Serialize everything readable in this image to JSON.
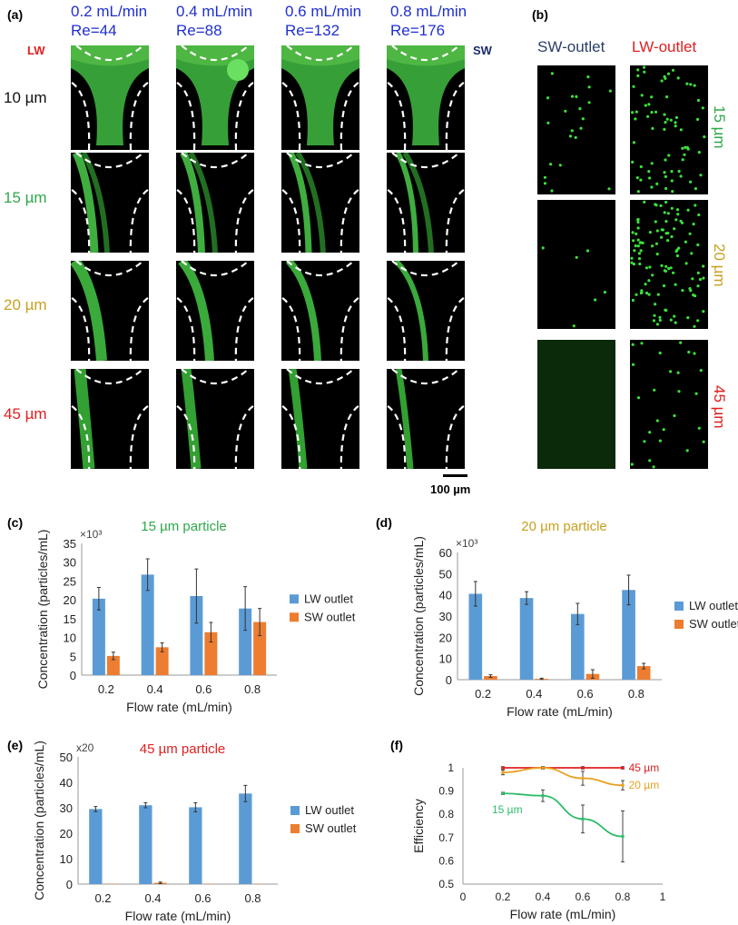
{
  "panel_a": {
    "label": "(a)",
    "columns": [
      {
        "flow": "0.2 mL/min",
        "re": "Re=44"
      },
      {
        "flow": "0.4 mL/min",
        "re": "Re=88"
      },
      {
        "flow": "0.6 mL/min",
        "re": "Re=132"
      },
      {
        "flow": "0.8 mL/min",
        "re": "Re=176"
      }
    ],
    "lw_label": "LW",
    "sw_label": "SW",
    "rows": [
      {
        "label": "10 µm",
        "color": "#111111"
      },
      {
        "label": "15 µm",
        "color": "#2ea84a"
      },
      {
        "label": "20 µm",
        "color": "#c8a020"
      },
      {
        "label": "45 µm",
        "color": "#e02020"
      }
    ],
    "scale_bar": "100 µm"
  },
  "panel_b": {
    "label": "(b)",
    "sw_outlet": "SW-outlet",
    "lw_outlet": "LW-outlet",
    "sw_color": "#2a3f6a",
    "lw_color": "#e02020",
    "rows": [
      {
        "label": "15 µm",
        "color": "#2ea84a"
      },
      {
        "label": "20 µm",
        "color": "#c8a020"
      },
      {
        "label": "45 µm",
        "color": "#e02020"
      }
    ]
  },
  "chart_data": [
    {
      "panel": "(c)",
      "type": "bar",
      "title": "15 µm particle",
      "title_color": "#2ea84a",
      "multiplier": "×10³",
      "xlabel": "Flow rate (mL/min)",
      "ylabel": "Concentration (particles/mL)",
      "categories": [
        "0.2",
        "0.4",
        "0.6",
        "0.8"
      ],
      "ylim": [
        0,
        35
      ],
      "yticks": [
        0,
        5,
        10,
        15,
        20,
        25,
        30,
        35
      ],
      "series": [
        {
          "name": "LW outlet",
          "color": "#5b9bd5",
          "values": [
            20.3,
            26.7,
            21.0,
            17.7
          ],
          "errors": [
            3.0,
            4.2,
            7.2,
            5.8
          ]
        },
        {
          "name": "SW outlet",
          "color": "#ed7d31",
          "values": [
            5.1,
            7.4,
            11.4,
            14.1
          ],
          "errors": [
            1.0,
            1.2,
            2.6,
            3.6
          ]
        }
      ]
    },
    {
      "panel": "(d)",
      "type": "bar",
      "title": "20 µm particle",
      "title_color": "#c8a020",
      "multiplier": "×10³",
      "xlabel": "Flow rate (mL/min)",
      "ylabel": "Concentration (particles/mL)",
      "categories": [
        "0.2",
        "0.4",
        "0.6",
        "0.8"
      ],
      "ylim": [
        0,
        60
      ],
      "yticks": [
        0,
        10,
        20,
        30,
        40,
        50,
        60
      ],
      "series": [
        {
          "name": "LW outlet",
          "color": "#5b9bd5",
          "values": [
            40.5,
            38.5,
            31.0,
            42.3
          ],
          "errors": [
            5.8,
            3.0,
            5.0,
            7.0
          ]
        },
        {
          "name": "SW outlet",
          "color": "#ed7d31",
          "values": [
            1.7,
            0.4,
            2.7,
            6.4
          ],
          "errors": [
            0.6,
            0.3,
            2.0,
            1.3
          ]
        }
      ]
    },
    {
      "panel": "(e)",
      "type": "bar",
      "title": "45 µm particle",
      "title_color": "#e02020",
      "multiplier": "x20",
      "xlabel": "Flow rate (mL/min)",
      "ylabel": "Concentration (particles/mL)",
      "categories": [
        "0.2",
        "0.4",
        "0.6",
        "0.8"
      ],
      "ylim": [
        0,
        50
      ],
      "yticks": [
        0,
        10,
        20,
        30,
        40,
        50
      ],
      "series": [
        {
          "name": "LW outlet",
          "color": "#5b9bd5",
          "values": [
            29.5,
            31.0,
            30.2,
            35.6
          ],
          "errors": [
            1.0,
            1.0,
            1.8,
            3.2
          ]
        },
        {
          "name": "SW outlet",
          "color": "#ed7d31",
          "values": [
            0.1,
            0.5,
            0.1,
            0.1
          ],
          "errors": [
            0,
            0.3,
            0,
            0
          ]
        }
      ]
    },
    {
      "panel": "(f)",
      "type": "line",
      "xlabel": "Flow rate (mL/min)",
      "ylabel": "Efficiency",
      "xlim": [
        0,
        1
      ],
      "ylim": [
        0.5,
        1
      ],
      "xticks": [
        "0",
        "0.2",
        "0.4",
        "0.6",
        "0.8",
        "1"
      ],
      "yticks": [
        "0.5",
        "0.6",
        "0.7",
        "0.8",
        "0.9",
        "1"
      ],
      "series": [
        {
          "name": "45 µm",
          "color": "#e02020",
          "x": [
            0.2,
            0.4,
            0.6,
            0.8
          ],
          "y": [
            1.0,
            1.0,
            1.0,
            1.0
          ],
          "errors": [
            0.005,
            0.005,
            0.005,
            0.005
          ]
        },
        {
          "name": "20 µm",
          "color": "#e8a020",
          "x": [
            0.2,
            0.4,
            0.6,
            0.8
          ],
          "y": [
            0.98,
            1.0,
            0.955,
            0.925
          ],
          "errors": [
            0.01,
            0.005,
            0.03,
            0.02
          ]
        },
        {
          "name": "15 µm",
          "color": "#2ebd6a",
          "x": [
            0.2,
            0.4,
            0.6,
            0.8
          ],
          "y": [
            0.89,
            0.88,
            0.78,
            0.705
          ],
          "errors": [
            0.005,
            0.025,
            0.06,
            0.11
          ]
        }
      ]
    }
  ]
}
